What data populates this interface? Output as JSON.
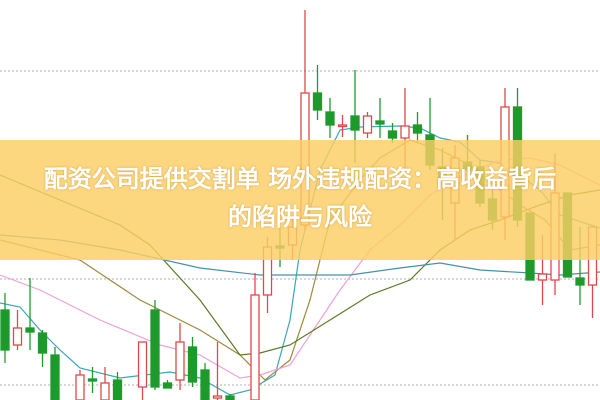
{
  "title": {
    "line1": "配资公司提供交割单 场外违规配资：高收益背后",
    "line2": "的陷阱与风险"
  },
  "colors": {
    "up": "#e0474c",
    "down": "#1e9a2c",
    "band": "#fcce64",
    "grid": "#b0b0b0"
  },
  "chart_data": {
    "type": "candlestick",
    "ylim": [
      0,
      400
    ],
    "grid": "dotted horizontal",
    "gridlines": [
      329,
      121,
      15
    ],
    "candles": [
      {
        "i": 0,
        "o": 90,
        "h": 107,
        "l": 37,
        "c": 50
      },
      {
        "i": 1,
        "o": 55,
        "h": 90,
        "l": 50,
        "c": 72
      },
      {
        "i": 2,
        "o": 72,
        "h": 122,
        "l": 50,
        "c": 68
      },
      {
        "i": 3,
        "o": 67,
        "h": 70,
        "l": 33,
        "c": 47
      },
      {
        "i": 4,
        "o": 45,
        "h": 53,
        "l": 0,
        "c": 0
      },
      {
        "i": 6,
        "o": 0,
        "h": 30,
        "l": 0,
        "c": 25
      },
      {
        "i": 7,
        "o": 21,
        "h": 33,
        "l": 7,
        "c": 19
      },
      {
        "i": 8,
        "o": 0,
        "h": 33,
        "l": 0,
        "c": 17
      },
      {
        "i": 9,
        "o": 20,
        "h": 28,
        "l": 0,
        "c": 0
      },
      {
        "i": 11,
        "o": 13,
        "h": 58,
        "l": 0,
        "c": 58
      },
      {
        "i": 12,
        "o": 90,
        "h": 100,
        "l": 10,
        "c": 13
      },
      {
        "i": 13,
        "o": 17,
        "h": 20,
        "l": 12,
        "c": 12
      },
      {
        "i": 14,
        "o": 20,
        "h": 77,
        "l": 10,
        "c": 58
      },
      {
        "i": 15,
        "o": 53,
        "h": 63,
        "l": 13,
        "c": 18
      },
      {
        "i": 16,
        "o": 30,
        "h": 37,
        "l": 0,
        "c": 0
      },
      {
        "i": 17,
        "o": 2,
        "h": 58,
        "l": 0,
        "c": 4
      },
      {
        "i": 18,
        "o": 4,
        "h": 6,
        "l": 0,
        "c": 0
      },
      {
        "i": 20,
        "o": 0,
        "h": 127,
        "l": 0,
        "c": 105
      },
      {
        "i": 21,
        "o": 105,
        "h": 163,
        "l": 87,
        "c": 153
      },
      {
        "i": 22,
        "o": 154,
        "h": 173,
        "l": 133,
        "c": 152
      },
      {
        "i": 23,
        "o": 155,
        "h": 183,
        "l": 140,
        "c": 173
      },
      {
        "i": 24,
        "o": 175,
        "h": 390,
        "l": 170,
        "c": 307
      },
      {
        "i": 25,
        "o": 307,
        "h": 335,
        "l": 280,
        "c": 290
      },
      {
        "i": 26,
        "o": 288,
        "h": 302,
        "l": 262,
        "c": 275
      },
      {
        "i": 27,
        "o": 274,
        "h": 285,
        "l": 263,
        "c": 275
      },
      {
        "i": 28,
        "o": 284,
        "h": 330,
        "l": 237,
        "c": 270
      },
      {
        "i": 29,
        "o": 267,
        "h": 288,
        "l": 262,
        "c": 284
      },
      {
        "i": 30,
        "o": 279,
        "h": 302,
        "l": 262,
        "c": 276
      },
      {
        "i": 31,
        "o": 269,
        "h": 277,
        "l": 257,
        "c": 262
      },
      {
        "i": 32,
        "o": 262,
        "h": 312,
        "l": 230,
        "c": 274
      },
      {
        "i": 33,
        "o": 275,
        "h": 288,
        "l": 257,
        "c": 267
      },
      {
        "i": 34,
        "o": 265,
        "h": 302,
        "l": 230,
        "c": 235
      },
      {
        "i": 35,
        "o": 233,
        "h": 252,
        "l": 180,
        "c": 220
      },
      {
        "i": 36,
        "o": 197,
        "h": 255,
        "l": 160,
        "c": 242
      },
      {
        "i": 37,
        "o": 238,
        "h": 265,
        "l": 213,
        "c": 230
      },
      {
        "i": 38,
        "o": 233,
        "h": 240,
        "l": 193,
        "c": 197
      },
      {
        "i": 39,
        "o": 201,
        "h": 213,
        "l": 170,
        "c": 180
      },
      {
        "i": 40,
        "o": 183,
        "h": 312,
        "l": 160,
        "c": 293
      },
      {
        "i": 41,
        "o": 293,
        "h": 312,
        "l": 173,
        "c": 180
      },
      {
        "i": 42,
        "o": 187,
        "h": 187,
        "l": 120,
        "c": 120
      },
      {
        "i": 43,
        "o": 120,
        "h": 165,
        "l": 95,
        "c": 126
      },
      {
        "i": 44,
        "o": 120,
        "h": 247,
        "l": 105,
        "c": 207
      },
      {
        "i": 45,
        "o": 207,
        "h": 207,
        "l": 123,
        "c": 123
      },
      {
        "i": 46,
        "o": 122,
        "h": 173,
        "l": 95,
        "c": 115
      },
      {
        "i": 47,
        "o": 115,
        "h": 173,
        "l": 82,
        "c": 173
      }
    ],
    "lines": [
      {
        "color": "#3aa6b8",
        "points": [
          [
            -0.4,
            97
          ],
          [
            1.2,
            93
          ],
          [
            2.8,
            70
          ],
          [
            4.4,
            50
          ],
          [
            6,
            32
          ],
          [
            9.2,
            22
          ],
          [
            13.2,
            28
          ],
          [
            15.6,
            22
          ],
          [
            18,
            5
          ],
          [
            19.6,
            10
          ],
          [
            21.6,
            25
          ],
          [
            22.8,
            80
          ],
          [
            23.6,
            150
          ],
          [
            25.2,
            230
          ],
          [
            26.8,
            270
          ],
          [
            28.4,
            273
          ],
          [
            31.6,
            274
          ],
          [
            33.2,
            272
          ],
          [
            34.8,
            262
          ],
          [
            36.4,
            258
          ],
          [
            38,
            240
          ],
          [
            39.6,
            237
          ],
          [
            41.2,
            225
          ],
          [
            42.8,
            210
          ],
          [
            44.4,
            185
          ],
          [
            47.6,
            172
          ]
        ]
      },
      {
        "color": "#9a8a3a",
        "points": [
          [
            -0.4,
            160
          ],
          [
            6,
            140
          ],
          [
            10.8,
            100
          ],
          [
            15.6,
            70
          ],
          [
            18.8,
            45
          ],
          [
            20.8,
            20
          ],
          [
            22.8,
            40
          ],
          [
            24.4,
            100
          ],
          [
            26,
            180
          ],
          [
            28.4,
            220
          ],
          [
            30,
            242
          ],
          [
            32.4,
            260
          ],
          [
            34.8,
            250
          ],
          [
            37.2,
            235
          ],
          [
            39.6,
            210
          ],
          [
            41.2,
            195
          ],
          [
            43.2,
            180
          ],
          [
            45.2,
            150
          ],
          [
            47.6,
            155
          ]
        ]
      },
      {
        "color": "#f0a0d8",
        "points": [
          [
            -0.4,
            125
          ],
          [
            2.8,
            110
          ],
          [
            7.6,
            80
          ],
          [
            12.4,
            55
          ],
          [
            15.6,
            45
          ],
          [
            18.8,
            22
          ],
          [
            20.4,
            25
          ],
          [
            22.8,
            35
          ],
          [
            24.4,
            65
          ],
          [
            26.8,
            110
          ],
          [
            29.2,
            150
          ],
          [
            31.6,
            175
          ],
          [
            34,
            205
          ],
          [
            37.2,
            228
          ],
          [
            39.6,
            240
          ],
          [
            42,
            242
          ],
          [
            44.4,
            235
          ],
          [
            47.6,
            215
          ]
        ]
      },
      {
        "color": "#5a7a2a",
        "points": [
          [
            -0.4,
            225
          ],
          [
            4.4,
            200
          ],
          [
            9.2,
            175
          ],
          [
            11.6,
            155
          ],
          [
            15.6,
            100
          ],
          [
            18.8,
            45
          ],
          [
            20.4,
            47
          ],
          [
            22.8,
            55
          ],
          [
            26,
            80
          ],
          [
            29.2,
            105
          ],
          [
            32.4,
            120
          ],
          [
            34.8,
            150
          ],
          [
            37.2,
            170
          ],
          [
            39.6,
            180
          ],
          [
            42.8,
            195
          ],
          [
            45.2,
            205
          ],
          [
            47.6,
            210
          ]
        ]
      },
      {
        "color": "#4a8fa8",
        "points": [
          [
            -0.4,
            165
          ],
          [
            4.4,
            160
          ],
          [
            9.2,
            150
          ],
          [
            15.6,
            132
          ],
          [
            20.4,
            125
          ],
          [
            23.6,
            125
          ],
          [
            27.6,
            125
          ],
          [
            31.6,
            132
          ],
          [
            34.8,
            137
          ],
          [
            38,
            130
          ],
          [
            42,
            127
          ],
          [
            44.4,
            125
          ],
          [
            47.6,
            128
          ]
        ]
      }
    ]
  }
}
